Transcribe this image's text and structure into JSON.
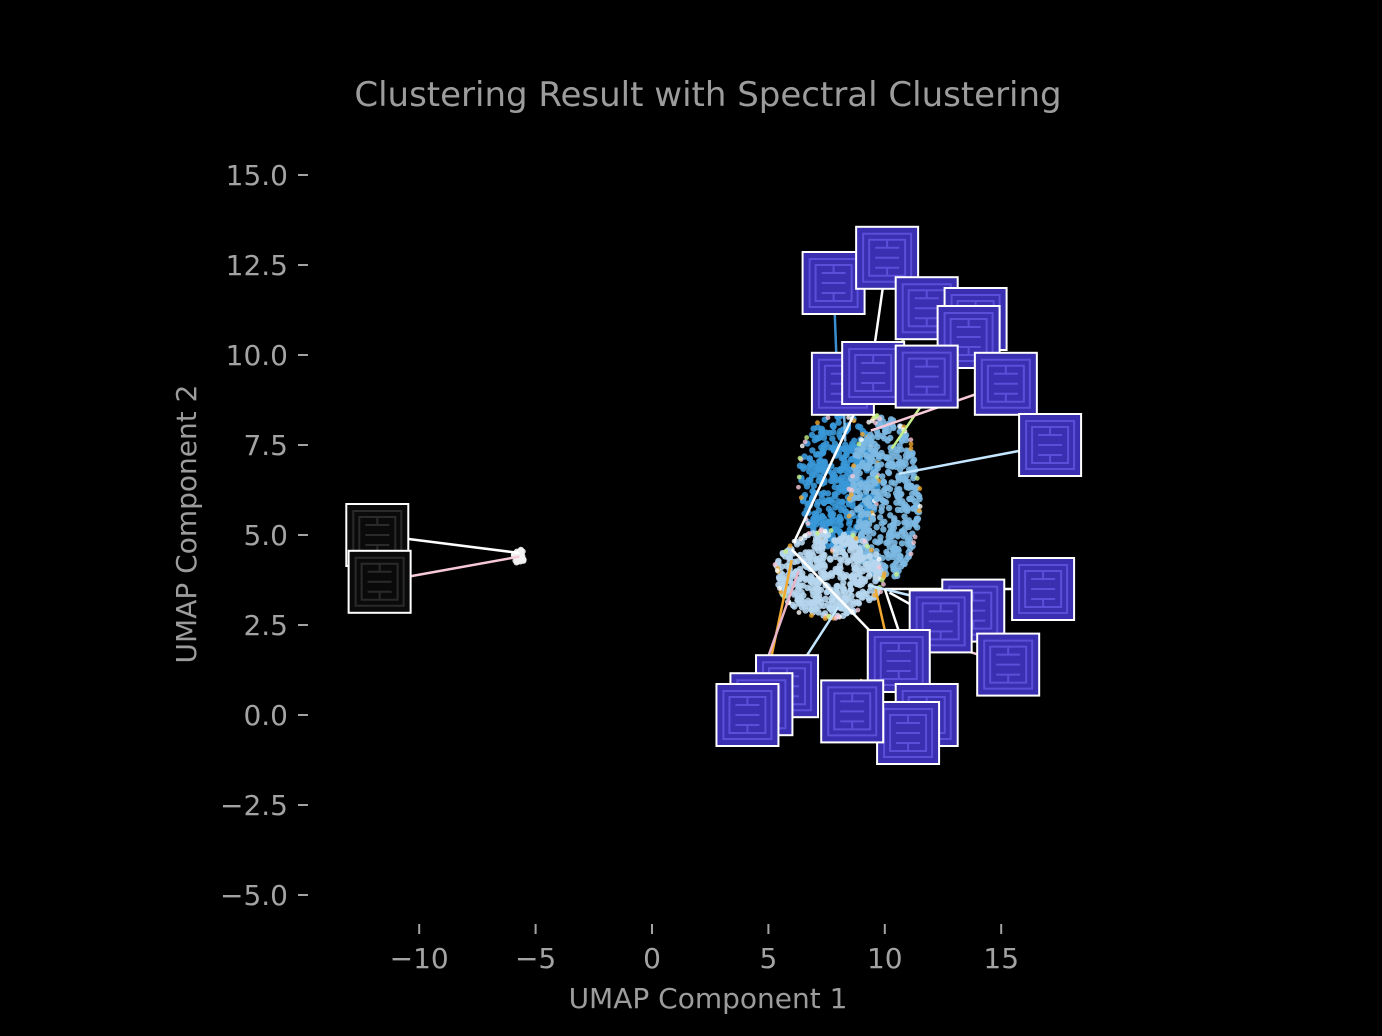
{
  "chart_data": {
    "type": "scatter",
    "title": "Clustering Result with Spectral Clustering",
    "xlabel": "UMAP Component 1",
    "ylabel": "UMAP Component 2",
    "xlim": [
      -14.5,
      19.5
    ],
    "ylim": [
      -5.8,
      16.2
    ],
    "xticks": [
      -10,
      -5,
      0,
      5,
      10,
      15
    ],
    "xtick_labels": [
      "−10",
      "−5",
      "0",
      "5",
      "10",
      "15"
    ],
    "yticks": [
      -5.0,
      -2.5,
      0.0,
      2.5,
      5.0,
      7.5,
      10.0,
      12.5,
      15.0
    ],
    "ytick_labels": [
      "−5.0",
      "−2.5",
      "0.0",
      "2.5",
      "5.0",
      "7.5",
      "10.0",
      "12.5",
      "15.0"
    ],
    "grid": false,
    "legend": "none",
    "background": "#000000",
    "clusters": [
      {
        "center": [
          8.0,
          6.5
        ],
        "rx": 1.7,
        "ry": 1.9,
        "color": "#3a98d8"
      },
      {
        "center": [
          10.0,
          6.0
        ],
        "rx": 1.5,
        "ry": 2.3,
        "color": "#7cb9e3"
      },
      {
        "center": [
          7.6,
          3.9
        ],
        "rx": 2.3,
        "ry": 1.2,
        "color": "#b6d6ee"
      },
      {
        "center": [
          -5.7,
          4.4
        ],
        "rx": 0.25,
        "ry": 0.2,
        "color": "#f2f2f2"
      }
    ],
    "thumbnails": [
      {
        "x": 7.8,
        "y": 12.0,
        "line_color": "#3b8fd0",
        "anchor": [
          8.0,
          8.6
        ],
        "tile_color": "#3a2fb0"
      },
      {
        "x": 10.1,
        "y": 12.7,
        "line_color": "#ffffff",
        "anchor": [
          9.5,
          10.0
        ],
        "tile_color": "#3a2fb0"
      },
      {
        "x": 11.8,
        "y": 11.3,
        "line_color": "#c6f08a",
        "anchor": [
          10.1,
          9.8
        ],
        "tile_color": "#3a2fb0"
      },
      {
        "x": 13.9,
        "y": 11.0,
        "line_color": "#ffffff",
        "anchor": [
          11.5,
          9.5
        ],
        "tile_color": "#3a2fb0"
      },
      {
        "x": 13.6,
        "y": 10.5,
        "line_color": "#c6f08a",
        "anchor": [
          10.3,
          7.4
        ],
        "tile_color": "#3a2fb0"
      },
      {
        "x": 8.2,
        "y": 9.2,
        "line_color": "#7cb9e3",
        "anchor": [
          8.3,
          7.6
        ],
        "tile_color": "#3a2fb0"
      },
      {
        "x": 9.5,
        "y": 9.5,
        "line_color": "#ffffff",
        "anchor": [
          6.1,
          4.8
        ],
        "tile_color": "#3a2fb0"
      },
      {
        "x": 11.8,
        "y": 9.4,
        "line_color": "#e8b4c8",
        "anchor": [
          10.6,
          9.0
        ],
        "tile_color": "#3a2fb0"
      },
      {
        "x": 15.2,
        "y": 9.2,
        "line_color": "#f6c8d8",
        "anchor": [
          9.4,
          7.9
        ],
        "tile_color": "#3a2fb0"
      },
      {
        "x": 17.1,
        "y": 7.5,
        "line_color": "#c4e6ff",
        "anchor": [
          10.6,
          6.7
        ],
        "tile_color": "#3a2fb0"
      },
      {
        "x": 16.8,
        "y": 3.5,
        "line_color": "#ffffff",
        "anchor": [
          10.0,
          3.5
        ],
        "tile_color": "#3a2fb0"
      },
      {
        "x": 13.8,
        "y": 2.9,
        "line_color": "#c4e6ff",
        "anchor": [
          9.3,
          3.6
        ],
        "tile_color": "#3a2fb0"
      },
      {
        "x": 15.3,
        "y": 1.4,
        "line_color": "#f6c8d8",
        "anchor": [
          12.5,
          2.0
        ],
        "tile_color": "#3a2fb0"
      },
      {
        "x": 12.4,
        "y": 2.6,
        "line_color": "#ffffff",
        "anchor": [
          10.2,
          3.4
        ],
        "tile_color": "#3a2fb0"
      },
      {
        "x": 10.6,
        "y": 1.5,
        "line_color": "#ffffff",
        "anchor": [
          6.0,
          4.6
        ],
        "tile_color": "#3a2fb0"
      },
      {
        "x": 11.8,
        "y": 0.0,
        "line_color": "#ffffff",
        "anchor": [
          10.0,
          3.5
        ],
        "tile_color": "#3a2fb0"
      },
      {
        "x": 11.0,
        "y": -0.5,
        "line_color": "#f0a830",
        "anchor": [
          9.6,
          3.5
        ],
        "tile_color": "#3a2fb0"
      },
      {
        "x": 8.6,
        "y": 0.1,
        "line_color": "#f0a830",
        "anchor": [
          9.0,
          1.0
        ],
        "tile_color": "#3a2fb0"
      },
      {
        "x": 5.8,
        "y": 0.8,
        "line_color": "#c4e6ff",
        "anchor": [
          8.0,
          3.0
        ],
        "tile_color": "#3a2fb0"
      },
      {
        "x": 4.7,
        "y": 0.3,
        "line_color": "#f0a830",
        "anchor": [
          6.0,
          4.3
        ],
        "tile_color": "#3a2fb0"
      },
      {
        "x": 4.1,
        "y": 0.0,
        "line_color": "#e8b4c8",
        "anchor": [
          6.3,
          4.0
        ],
        "tile_color": "#3a2fb0"
      },
      {
        "x": -11.8,
        "y": 5.0,
        "line_color": "#ffffff",
        "anchor": [
          -5.7,
          4.5
        ],
        "tile_color": "#0a0a0a"
      },
      {
        "x": -11.7,
        "y": 3.7,
        "line_color": "#f6c8d8",
        "anchor": [
          -5.7,
          4.4
        ],
        "tile_color": "#0a0a0a"
      }
    ]
  }
}
